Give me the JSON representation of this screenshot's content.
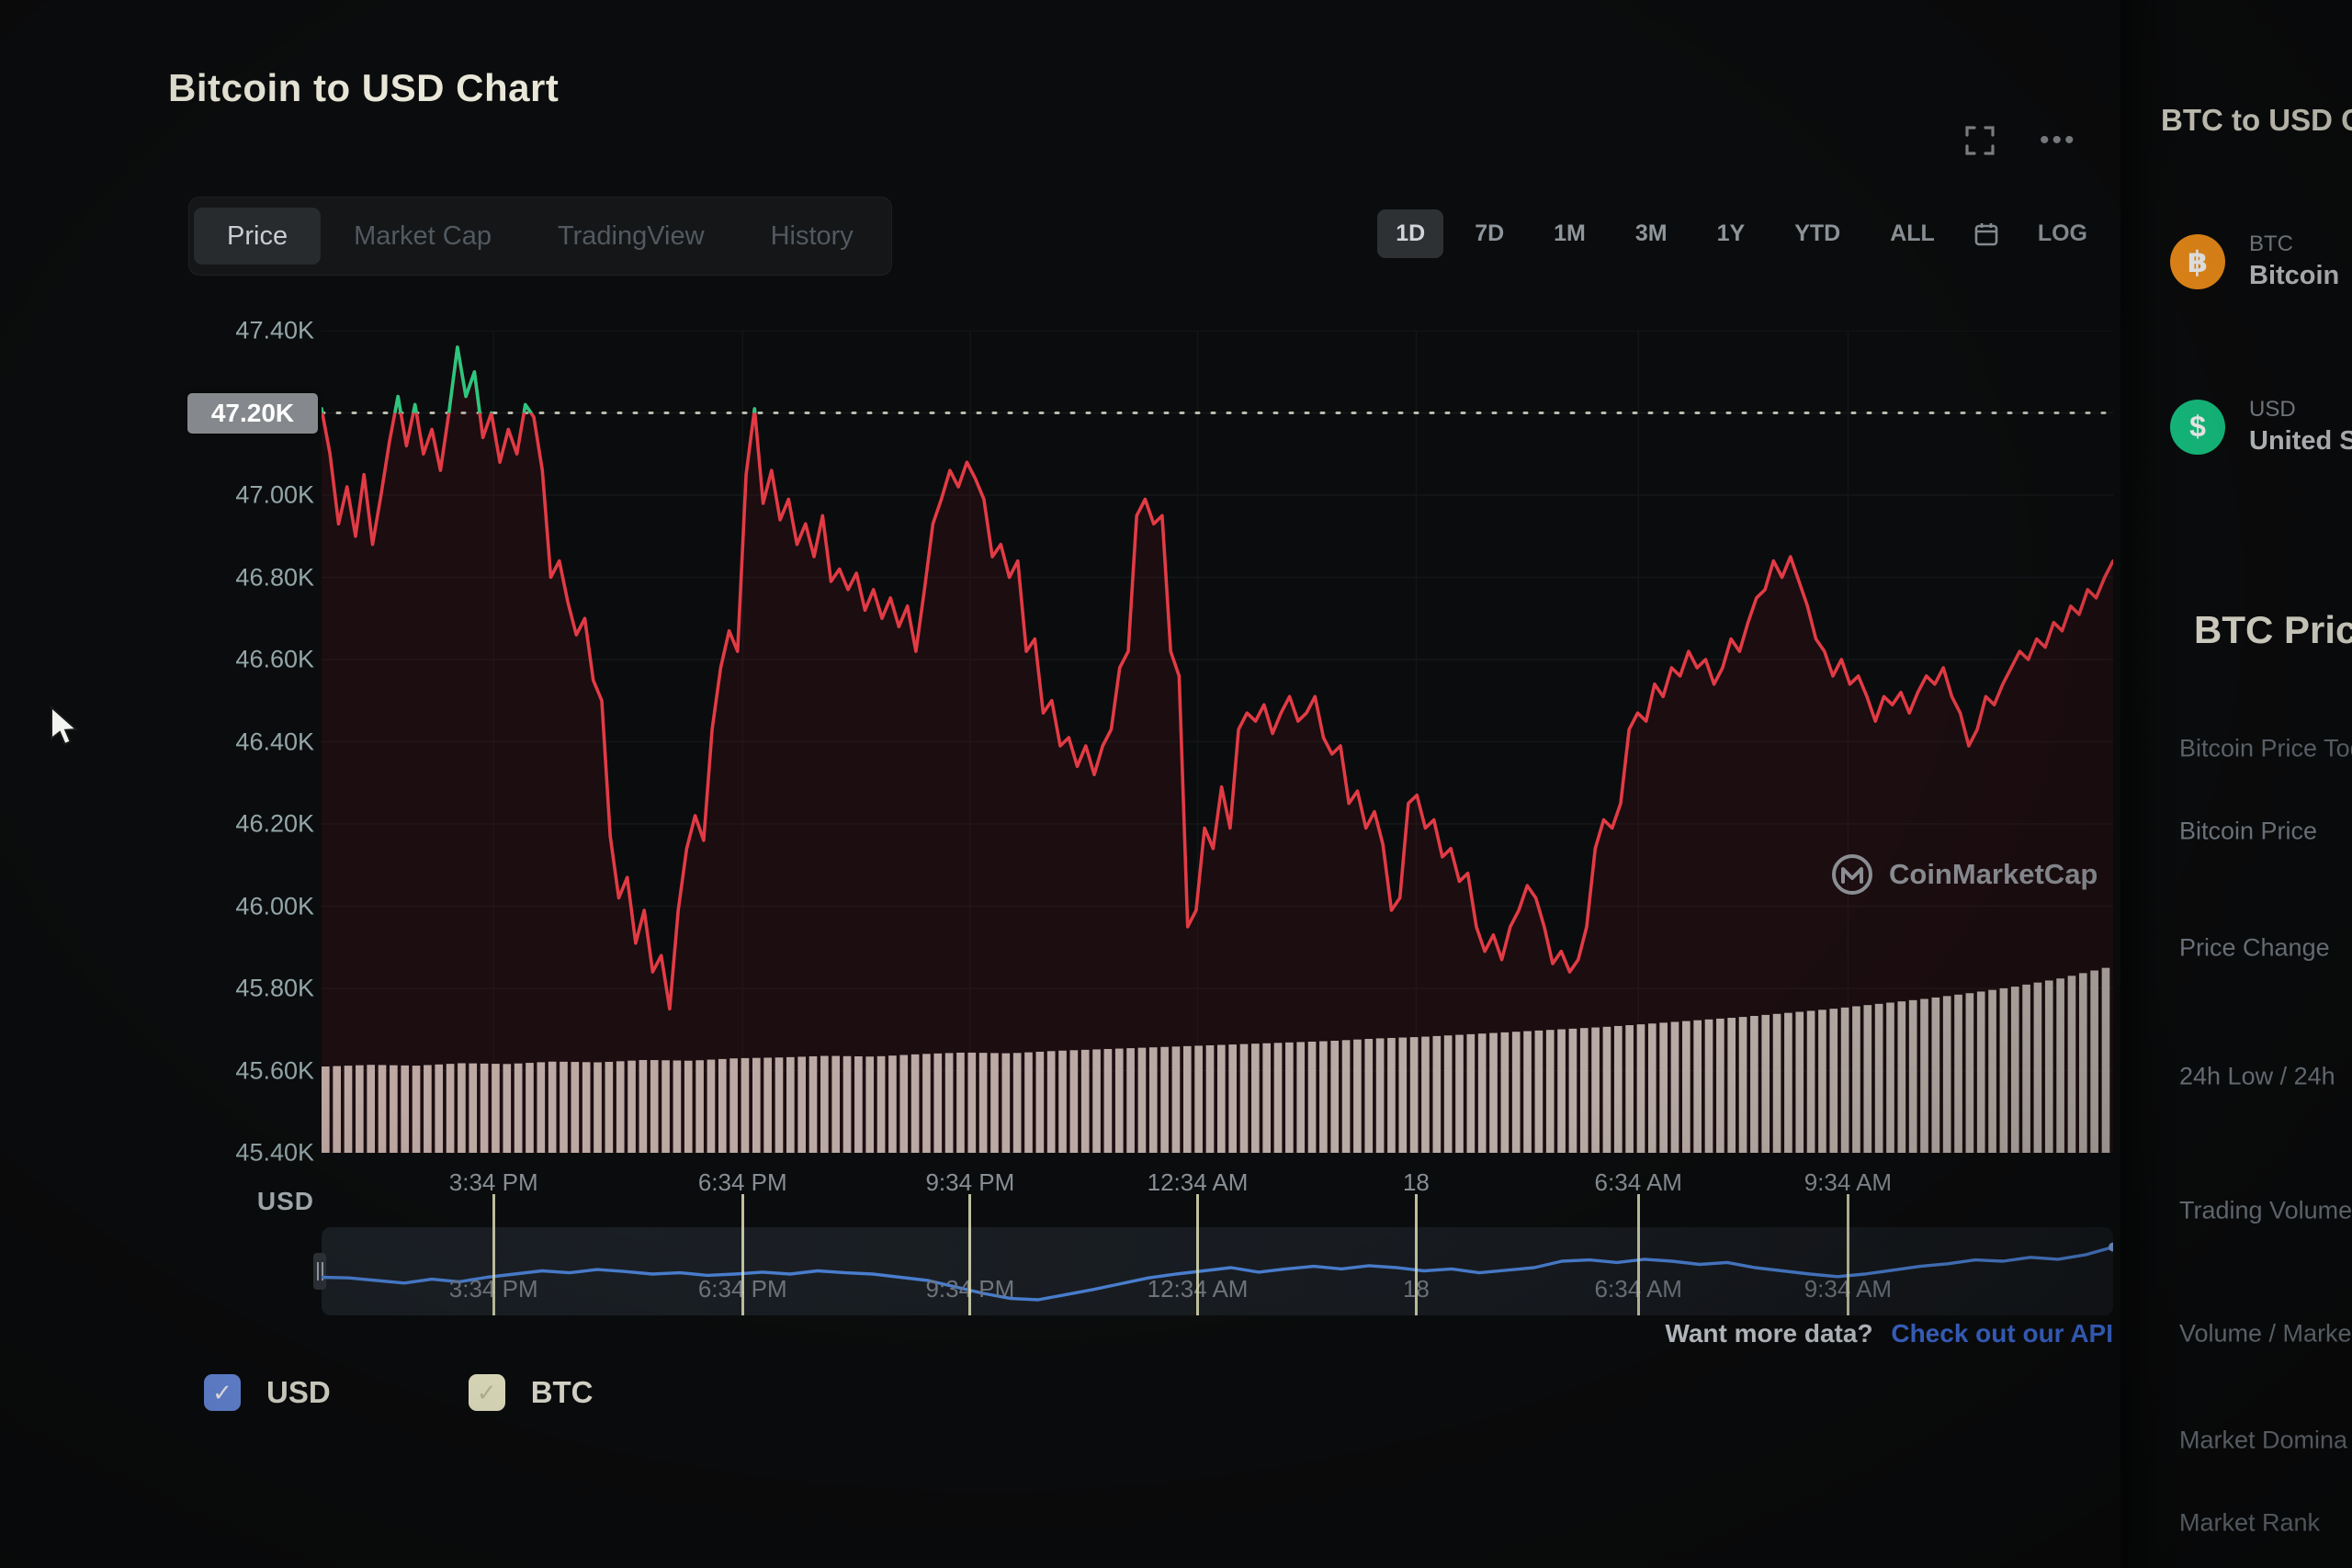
{
  "header": {
    "title": "Bitcoin to USD Chart",
    "more_icon": "•••"
  },
  "tabs": {
    "items": [
      {
        "label": "Price",
        "active": true
      },
      {
        "label": "Market Cap",
        "active": false
      },
      {
        "label": "TradingView",
        "active": false
      },
      {
        "label": "History",
        "active": false
      }
    ]
  },
  "ranges": {
    "items": [
      "1D",
      "7D",
      "1M",
      "3M",
      "1Y",
      "YTD",
      "ALL"
    ],
    "active": "1D",
    "log_label": "LOG"
  },
  "axis": {
    "y_labels": [
      "47.40K",
      "47.20K",
      "47.00K",
      "46.80K",
      "46.60K",
      "46.40K",
      "46.20K",
      "46.00K",
      "45.80K",
      "45.60K",
      "45.40K"
    ],
    "y_unit": "USD",
    "highlight_label": "47.20K",
    "x_ticks": [
      {
        "label": "3:34 PM",
        "f": 0.096
      },
      {
        "label": "6:34 PM",
        "f": 0.235
      },
      {
        "label": "9:34 PM",
        "f": 0.362
      },
      {
        "label": "12:34 AM",
        "f": 0.489
      },
      {
        "label": "18",
        "f": 0.611
      },
      {
        "label": "6:34 AM",
        "f": 0.735
      },
      {
        "label": "9:34 AM",
        "f": 0.852
      }
    ]
  },
  "chart_data": {
    "type": "line",
    "title": "Bitcoin to USD Chart",
    "ylabel": "USD",
    "ylim": [
      45.4,
      47.4
    ],
    "y_ticks": [
      "47.40K",
      "47.20K",
      "47.00K",
      "46.80K",
      "46.60K",
      "46.40K",
      "46.20K",
      "46.00K",
      "45.80K",
      "45.60K",
      "45.40K"
    ],
    "x_ticks": [
      "3:34 PM",
      "6:34 PM",
      "9:34 PM",
      "12:34 AM",
      "18",
      "6:34 AM",
      "9:34 AM"
    ],
    "open_price_line": 47.2,
    "series": [
      {
        "name": "BTC price (K USD)",
        "color_down": "#e23b45",
        "color_up": "#2bc77e",
        "values": [
          47.21,
          47.1,
          46.93,
          47.02,
          46.9,
          47.05,
          46.88,
          47.0,
          47.13,
          47.24,
          47.12,
          47.22,
          47.1,
          47.16,
          47.06,
          47.2,
          47.36,
          47.24,
          47.3,
          47.14,
          47.2,
          47.08,
          47.16,
          47.1,
          47.22,
          47.19,
          47.06,
          46.8,
          46.84,
          46.74,
          46.66,
          46.7,
          46.55,
          46.5,
          46.17,
          46.02,
          46.07,
          45.91,
          45.99,
          45.84,
          45.88,
          45.75,
          45.99,
          46.14,
          46.22,
          46.16,
          46.43,
          46.58,
          46.67,
          46.62,
          47.05,
          47.21,
          46.98,
          47.06,
          46.94,
          46.99,
          46.88,
          46.93,
          46.85,
          46.95,
          46.79,
          46.82,
          46.77,
          46.81,
          46.72,
          46.77,
          46.7,
          46.75,
          46.68,
          46.73,
          46.62,
          46.77,
          46.93,
          46.99,
          47.06,
          47.02,
          47.08,
          47.04,
          46.99,
          46.85,
          46.88,
          46.8,
          46.84,
          46.62,
          46.65,
          46.47,
          46.5,
          46.39,
          46.41,
          46.34,
          46.39,
          46.32,
          46.39,
          46.43,
          46.58,
          46.62,
          46.95,
          46.99,
          46.93,
          46.95,
          46.62,
          46.56,
          45.95,
          45.99,
          46.19,
          46.14,
          46.29,
          46.19,
          46.43,
          46.47,
          46.45,
          46.49,
          46.42,
          46.47,
          46.51,
          46.45,
          46.47,
          46.51,
          46.41,
          46.37,
          46.39,
          46.25,
          46.28,
          46.19,
          46.23,
          46.15,
          45.99,
          46.02,
          46.25,
          46.27,
          46.19,
          46.21,
          46.12,
          46.14,
          46.06,
          46.08,
          45.95,
          45.89,
          45.93,
          45.87,
          45.95,
          45.99,
          46.05,
          46.02,
          45.95,
          45.86,
          45.89,
          45.84,
          45.87,
          45.95,
          46.14,
          46.21,
          46.19,
          46.25,
          46.43,
          46.47,
          46.45,
          46.54,
          46.51,
          46.58,
          46.56,
          46.62,
          46.58,
          46.6,
          46.54,
          46.58,
          46.65,
          46.62,
          46.69,
          46.75,
          46.77,
          46.84,
          46.8,
          46.85,
          46.79,
          46.73,
          46.65,
          46.62,
          46.56,
          46.6,
          46.54,
          46.56,
          46.51,
          46.45,
          46.51,
          46.49,
          46.52,
          46.47,
          46.52,
          46.56,
          46.54,
          46.58,
          46.51,
          46.47,
          46.39,
          46.43,
          46.51,
          46.49,
          46.54,
          46.58,
          46.62,
          46.6,
          46.65,
          46.63,
          46.69,
          46.67,
          46.73,
          46.71,
          46.77,
          46.75,
          46.8,
          46.84
        ]
      }
    ],
    "volume": {
      "color_left": "#d8cfc9",
      "color_right": "#ced6cb",
      "heights": [
        0.105,
        0.107,
        0.106,
        0.109,
        0.108,
        0.111,
        0.11,
        0.113,
        0.112,
        0.115,
        0.116,
        0.118,
        0.117,
        0.12,
        0.122,
        0.121,
        0.124,
        0.126,
        0.128,
        0.13,
        0.132,
        0.134,
        0.136,
        0.139,
        0.141,
        0.144,
        0.147,
        0.15,
        0.153,
        0.157,
        0.161,
        0.165,
        0.17,
        0.175,
        0.181,
        0.187,
        0.194,
        0.202,
        0.212,
        0.225
      ]
    },
    "navigator_series": {
      "name": "USD",
      "color": "#4a7fd1",
      "values": [
        0.45,
        0.44,
        0.4,
        0.36,
        0.42,
        0.38,
        0.45,
        0.5,
        0.55,
        0.52,
        0.57,
        0.54,
        0.5,
        0.52,
        0.48,
        0.5,
        0.53,
        0.5,
        0.55,
        0.52,
        0.5,
        0.45,
        0.4,
        0.3,
        0.2,
        0.12,
        0.1,
        0.18,
        0.26,
        0.35,
        0.44,
        0.5,
        0.55,
        0.6,
        0.53,
        0.58,
        0.62,
        0.58,
        0.63,
        0.6,
        0.55,
        0.58,
        0.52,
        0.56,
        0.6,
        0.7,
        0.72,
        0.68,
        0.73,
        0.7,
        0.65,
        0.68,
        0.6,
        0.55,
        0.5,
        0.46,
        0.5,
        0.56,
        0.62,
        0.66,
        0.72,
        0.7,
        0.76,
        0.73,
        0.8,
        0.92
      ]
    }
  },
  "watermark": {
    "label": "CoinMarketCap"
  },
  "api_prompt": {
    "text": "Want more data?",
    "link": "Check out our API"
  },
  "legend": {
    "items": [
      {
        "label": "USD",
        "box_color": "#6b90e6",
        "check_color": "#ffffff"
      },
      {
        "label": "BTC",
        "box_color": "#edecca",
        "check_color": "#c2c19b"
      }
    ]
  },
  "sidebar": {
    "converter_title": "BTC to USD Co",
    "coins": [
      {
        "symbol": "BTC",
        "name": "Bitcoin",
        "color": "#f7931a",
        "glyph": "฿"
      },
      {
        "symbol": "USD",
        "name": "United St",
        "color": "#16c784",
        "glyph": "$"
      }
    ],
    "stats_title": "BTC Price",
    "rows": [
      {
        "label": "Bitcoin Price Tod",
        "sub": true
      },
      {
        "label": "Bitcoin Price",
        "sub": false
      },
      {
        "label": "Price Change",
        "sub": false
      },
      {
        "label": "24h Low / 24h",
        "sub": false
      },
      {
        "label": "Trading Volume",
        "sub": false
      },
      {
        "label": "Volume / Marke",
        "sub": false
      },
      {
        "label": "Market Domina",
        "sub": false
      },
      {
        "label": "Market Rank",
        "sub": false
      }
    ]
  }
}
